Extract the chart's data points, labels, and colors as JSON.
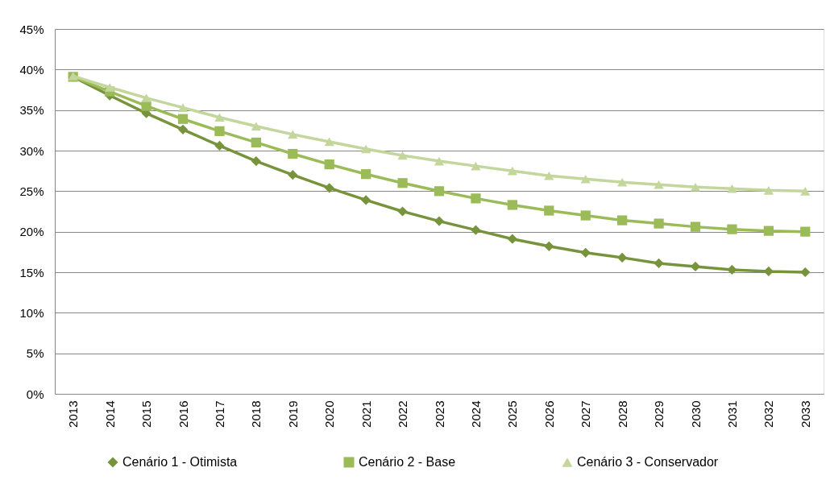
{
  "chart_data": {
    "type": "line",
    "categories": [
      "2013",
      "2014",
      "2015",
      "2016",
      "2017",
      "2018",
      "2019",
      "2020",
      "2021",
      "2022",
      "2023",
      "2024",
      "2025",
      "2026",
      "2027",
      "2028",
      "2029",
      "2030",
      "2031",
      "2032",
      "2033"
    ],
    "series": [
      {
        "name": "Cenário 1 - Otimista",
        "color": "#77933c",
        "marker": "diamond",
        "values": [
          39.1,
          36.8,
          34.6,
          32.6,
          30.6,
          28.7,
          27.0,
          25.4,
          23.9,
          22.5,
          21.3,
          20.2,
          19.1,
          18.2,
          17.4,
          16.8,
          16.1,
          15.7,
          15.3,
          15.1,
          15.0
        ]
      },
      {
        "name": "Cenário 2 - Base",
        "color": "#9bbb59",
        "marker": "square",
        "values": [
          39.1,
          37.3,
          35.5,
          33.9,
          32.4,
          31.0,
          29.6,
          28.3,
          27.1,
          26.0,
          25.0,
          24.1,
          23.3,
          22.6,
          22.0,
          21.4,
          21.0,
          20.6,
          20.3,
          20.1,
          20.0
        ]
      },
      {
        "name": "Cenário 3 - Conservador",
        "color": "#c3d69b",
        "marker": "triangle",
        "values": [
          39.2,
          37.8,
          36.5,
          35.3,
          34.1,
          33.0,
          32.0,
          31.1,
          30.2,
          29.4,
          28.7,
          28.1,
          27.5,
          26.9,
          26.5,
          26.1,
          25.8,
          25.5,
          25.3,
          25.1,
          25.0
        ]
      }
    ],
    "ylim": [
      0,
      45
    ],
    "yticks": [
      {
        "value": 0,
        "label": "0%"
      },
      {
        "value": 5,
        "label": "5%"
      },
      {
        "value": 10,
        "label": "10%"
      },
      {
        "value": 15,
        "label": "15%"
      },
      {
        "value": 20,
        "label": "20%"
      },
      {
        "value": 25,
        "label": "25%"
      },
      {
        "value": 30,
        "label": "30%"
      },
      {
        "value": 35,
        "label": "35%"
      },
      {
        "value": 40,
        "label": "40%"
      },
      {
        "value": 45,
        "label": "45%"
      }
    ],
    "grid": "y",
    "line_style": "solid",
    "legend": "bottom"
  }
}
